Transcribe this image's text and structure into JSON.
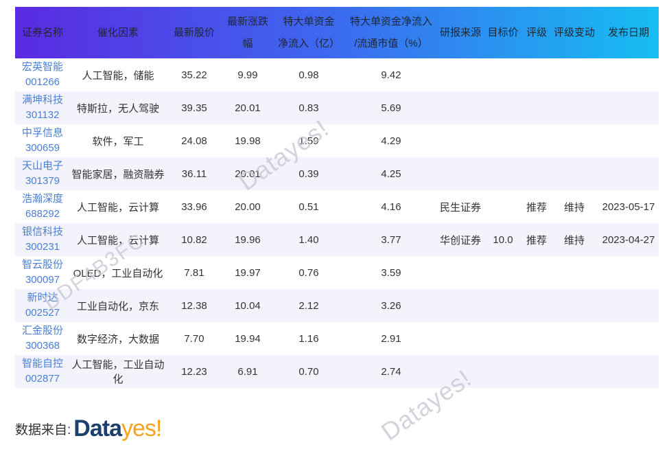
{
  "colors": {
    "header_gradient_start": "#5b2ae2",
    "header_gradient_mid": "#3e66ef",
    "header_gradient_end": "#17bdf2",
    "header_text": "#1f2733",
    "link_blue": "#4a7fd6",
    "body_text": "#333333",
    "alt_row_bg": "#f2f3fb",
    "watermark_gray": "#c7c9d4",
    "logo_navy": "#1d3f6e",
    "logo_orange": "#f7a21c"
  },
  "table": {
    "columns": [
      {
        "key": "name",
        "label": "证券名称",
        "label2": ""
      },
      {
        "key": "catalyst",
        "label": "催化因素",
        "label2": ""
      },
      {
        "key": "price",
        "label": "最新股价",
        "label2": ""
      },
      {
        "key": "change",
        "label": "最新涨跌幅",
        "label2": ""
      },
      {
        "key": "inflow",
        "label": "特大单资金",
        "label2": "净流入（亿）"
      },
      {
        "key": "ratio",
        "label": "特大单资金净流入",
        "label2": "/流通市值（%）"
      },
      {
        "key": "source",
        "label": "研报来源",
        "label2": ""
      },
      {
        "key": "target",
        "label": "目标价",
        "label2": ""
      },
      {
        "key": "rating",
        "label": "评级",
        "label2": ""
      },
      {
        "key": "rating_change",
        "label": "评级变动",
        "label2": ""
      },
      {
        "key": "date",
        "label": "发布日期",
        "label2": ""
      }
    ],
    "rows": [
      {
        "name": "宏英智能",
        "code": "001266",
        "catalyst": "人工智能，储能",
        "price": "35.22",
        "change": "9.99",
        "inflow": "0.98",
        "ratio": "9.42",
        "source": "",
        "target": "",
        "rating": "",
        "rating_change": "",
        "date": ""
      },
      {
        "name": "满坤科技",
        "code": "301132",
        "catalyst": "特斯拉，无人驾驶",
        "price": "39.35",
        "change": "20.01",
        "inflow": "0.83",
        "ratio": "5.69",
        "source": "",
        "target": "",
        "rating": "",
        "rating_change": "",
        "date": ""
      },
      {
        "name": "中孚信息",
        "code": "300659",
        "catalyst": "软件，军工",
        "price": "24.08",
        "change": "19.98",
        "inflow": "1.59",
        "ratio": "4.29",
        "source": "",
        "target": "",
        "rating": "",
        "rating_change": "",
        "date": ""
      },
      {
        "name": "天山电子",
        "code": "301379",
        "catalyst": "智能家居，融资融券",
        "price": "36.11",
        "change": "20.01",
        "inflow": "0.39",
        "ratio": "4.25",
        "source": "",
        "target": "",
        "rating": "",
        "rating_change": "",
        "date": ""
      },
      {
        "name": "浩瀚深度",
        "code": "688292",
        "catalyst": "人工智能，云计算",
        "price": "33.96",
        "change": "20.00",
        "inflow": "0.51",
        "ratio": "4.16",
        "source": "民生证券",
        "target": "",
        "rating": "推荐",
        "rating_change": "维持",
        "date": "2023-05-17"
      },
      {
        "name": "银信科技",
        "code": "300231",
        "catalyst": "人工智能，云计算",
        "price": "10.82",
        "change": "19.96",
        "inflow": "1.40",
        "ratio": "3.77",
        "source": "华创证券",
        "target": "10.0",
        "rating": "推荐",
        "rating_change": "维持",
        "date": "2023-04-27"
      },
      {
        "name": "智云股份",
        "code": "300097",
        "catalyst": "OLED，工业自动化",
        "price": "7.81",
        "change": "19.97",
        "inflow": "0.76",
        "ratio": "3.59",
        "source": "",
        "target": "",
        "rating": "",
        "rating_change": "",
        "date": ""
      },
      {
        "name": "新时达",
        "code": "002527",
        "catalyst": "工业自动化，京东",
        "price": "12.38",
        "change": "10.04",
        "inflow": "2.12",
        "ratio": "3.26",
        "source": "",
        "target": "",
        "rating": "",
        "rating_change": "",
        "date": ""
      },
      {
        "name": "汇金股份",
        "code": "300368",
        "catalyst": "数字经济，大数据",
        "price": "7.70",
        "change": "19.94",
        "inflow": "1.16",
        "ratio": "2.91",
        "source": "",
        "target": "",
        "rating": "",
        "rating_change": "",
        "date": ""
      },
      {
        "name": "智能自控",
        "code": "002877",
        "catalyst": "人工智能，工业自动化",
        "price": "12.23",
        "change": "6.91",
        "inflow": "0.70",
        "ratio": "2.74",
        "source": "",
        "target": "",
        "rating": "",
        "rating_change": "",
        "date": ""
      }
    ]
  },
  "watermarks": {
    "center": "Datayes!",
    "code": "DDF4B3FC",
    "bottom": "Datayes!"
  },
  "footer": {
    "prefix": "数据来自:",
    "logo_part1": "Data",
    "logo_part2": "yes!"
  }
}
